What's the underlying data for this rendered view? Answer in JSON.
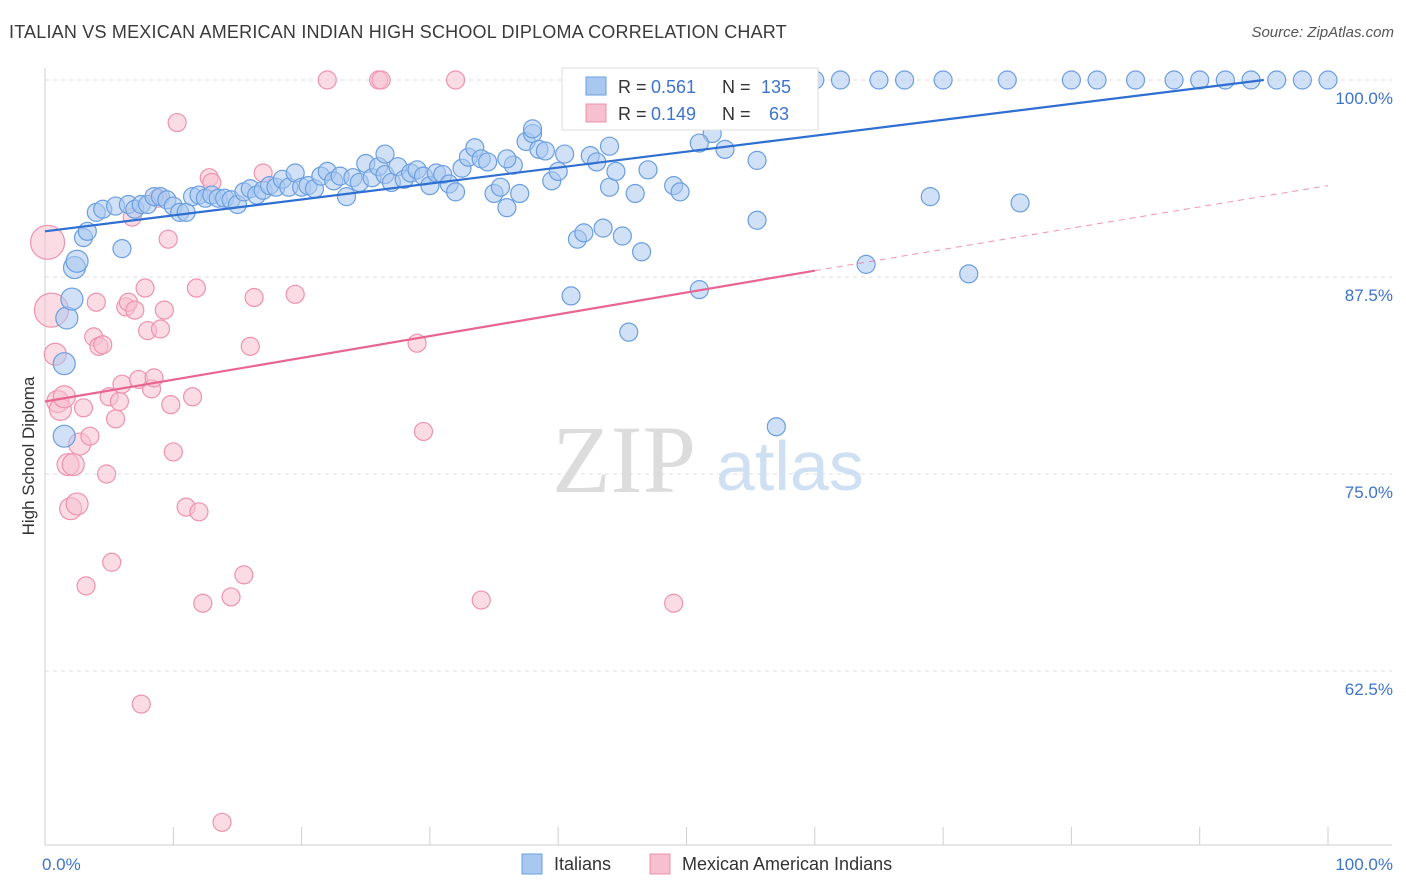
{
  "header": {
    "title": "ITALIAN VS MEXICAN AMERICAN INDIAN HIGH SCHOOL DIPLOMA CORRELATION CHART",
    "source": "Source: ZipAtlas.com"
  },
  "watermark": {
    "zip": "ZIP",
    "atlas": "atlas"
  },
  "colors": {
    "blue_fill": "#a9c8f0",
    "blue_stroke": "#6a9ee0",
    "blue_line": "#2e6fd1",
    "pink_fill": "#f7c0d0",
    "pink_stroke": "#ee92ad",
    "pink_line": "#e86592",
    "grid": "#dddddd",
    "tick_text": "#3d74c9"
  },
  "stats": [
    {
      "r_label": "R = ",
      "r": "0.561",
      "n_label": "N = ",
      "n": "135"
    },
    {
      "r_label": "R = ",
      "r": "0.149",
      "n_label": "N = ",
      "n": "63"
    }
  ],
  "chart_data": {
    "type": "scatter",
    "title": "ITALIAN VS MEXICAN AMERICAN INDIAN HIGH SCHOOL DIPLOMA CORRELATION CHART",
    "xlabel": "",
    "ylabel": "High School Diploma",
    "xlim": [
      0,
      100
    ],
    "ylim": [
      50,
      101
    ],
    "x_ticks": [
      "0.0%",
      "100.0%"
    ],
    "y_ticks": [
      {
        "value": 100.0,
        "label": "100.0%"
      },
      {
        "value": 87.5,
        "label": "87.5%"
      },
      {
        "value": 75.0,
        "label": "75.0%"
      },
      {
        "value": 62.5,
        "label": "62.5%"
      }
    ],
    "grid": true,
    "legend_position": "bottom-center",
    "series": [
      {
        "name": "Italians",
        "color": "#a9c8f0",
        "trend": {
          "x": [
            0,
            95
          ],
          "y": [
            90.4,
            100.0
          ]
        },
        "points": [
          [
            1.5,
            77.4
          ],
          [
            1.5,
            82.0
          ],
          [
            1.7,
            84.9
          ],
          [
            2.1,
            86.1
          ],
          [
            2.3,
            88.1
          ],
          [
            2.5,
            88.5
          ],
          [
            3.0,
            90.0
          ],
          [
            3.3,
            90.4
          ],
          [
            4.0,
            91.6
          ],
          [
            4.5,
            91.8
          ],
          [
            5.5,
            92.0
          ],
          [
            6.0,
            89.3
          ],
          [
            6.5,
            92.1
          ],
          [
            7.0,
            91.8
          ],
          [
            7.5,
            92.1
          ],
          [
            8.0,
            92.1
          ],
          [
            8.5,
            92.6
          ],
          [
            9.0,
            92.6
          ],
          [
            9.5,
            92.4
          ],
          [
            10.0,
            92.0
          ],
          [
            10.5,
            91.6
          ],
          [
            11.0,
            91.6
          ],
          [
            11.5,
            92.6
          ],
          [
            12.0,
            92.7
          ],
          [
            12.5,
            92.5
          ],
          [
            13.0,
            92.7
          ],
          [
            13.5,
            92.5
          ],
          [
            14.0,
            92.5
          ],
          [
            14.5,
            92.4
          ],
          [
            15.0,
            92.1
          ],
          [
            15.5,
            92.9
          ],
          [
            16.0,
            93.1
          ],
          [
            16.5,
            92.7
          ],
          [
            17.0,
            93.0
          ],
          [
            17.5,
            93.3
          ],
          [
            18.0,
            93.2
          ],
          [
            18.5,
            93.7
          ],
          [
            19.0,
            93.2
          ],
          [
            19.5,
            94.1
          ],
          [
            20.0,
            93.2
          ],
          [
            20.5,
            93.3
          ],
          [
            21.0,
            93.1
          ],
          [
            21.5,
            93.9
          ],
          [
            22.0,
            94.2
          ],
          [
            22.5,
            93.6
          ],
          [
            23.0,
            93.9
          ],
          [
            23.5,
            92.6
          ],
          [
            24.0,
            93.8
          ],
          [
            24.5,
            93.5
          ],
          [
            25.0,
            94.7
          ],
          [
            25.5,
            93.8
          ],
          [
            26.0,
            94.5
          ],
          [
            26.5,
            94.0
          ],
          [
            27.0,
            93.5
          ],
          [
            27.5,
            94.5
          ],
          [
            28.0,
            93.7
          ],
          [
            28.5,
            94.1
          ],
          [
            29.0,
            94.3
          ],
          [
            29.5,
            93.9
          ],
          [
            30.0,
            93.3
          ],
          [
            30.5,
            94.1
          ],
          [
            31.0,
            94.0
          ],
          [
            31.5,
            93.4
          ],
          [
            32.0,
            92.9
          ],
          [
            32.5,
            94.4
          ],
          [
            33.0,
            95.1
          ],
          [
            33.5,
            95.7
          ],
          [
            34.0,
            95.0
          ],
          [
            34.5,
            94.8
          ],
          [
            35.0,
            92.8
          ],
          [
            35.5,
            93.2
          ],
          [
            36.0,
            91.9
          ],
          [
            36.5,
            94.6
          ],
          [
            37.0,
            92.8
          ],
          [
            37.5,
            96.1
          ],
          [
            38.0,
            96.6
          ],
          [
            38.5,
            95.6
          ],
          [
            39.0,
            95.5
          ],
          [
            39.5,
            93.6
          ],
          [
            40.0,
            94.2
          ],
          [
            40.5,
            95.3
          ],
          [
            41.0,
            86.3
          ],
          [
            41.5,
            89.9
          ],
          [
            42.0,
            90.3
          ],
          [
            42.5,
            95.2
          ],
          [
            43.0,
            94.8
          ],
          [
            43.5,
            90.6
          ],
          [
            44.0,
            93.2
          ],
          [
            44.5,
            94.2
          ],
          [
            45.0,
            90.1
          ],
          [
            45.5,
            84.0
          ],
          [
            46.0,
            92.8
          ],
          [
            46.5,
            89.1
          ],
          [
            47.0,
            94.3
          ],
          [
            48.0,
            99.6
          ],
          [
            48.5,
            98.8
          ],
          [
            49.0,
            93.3
          ],
          [
            49.5,
            92.9
          ],
          [
            50.0,
            100.0
          ],
          [
            51.0,
            86.7
          ],
          [
            51.5,
            99.8
          ],
          [
            52.0,
            96.6
          ],
          [
            53.0,
            95.6
          ],
          [
            54.0,
            100.0
          ],
          [
            55.0,
            100.0
          ],
          [
            56.0,
            100.0
          ],
          [
            57.0,
            78.0
          ],
          [
            55.5,
            91.1
          ],
          [
            58.0,
            100.0
          ],
          [
            60.0,
            100.0
          ],
          [
            62.0,
            100.0
          ],
          [
            64.0,
            88.3
          ],
          [
            65.0,
            100.0
          ],
          [
            67.0,
            100.0
          ],
          [
            69.0,
            92.6
          ],
          [
            70.0,
            100.0
          ],
          [
            72.0,
            87.7
          ],
          [
            75.0,
            100.0
          ],
          [
            76.0,
            92.2
          ],
          [
            80.0,
            100.0
          ],
          [
            82.0,
            100.0
          ],
          [
            85.0,
            100.0
          ],
          [
            88.0,
            100.0
          ],
          [
            90.0,
            100.0
          ],
          [
            92.0,
            100.0
          ],
          [
            94.0,
            100.0
          ],
          [
            96.0,
            100.0
          ],
          [
            98.0,
            100.0
          ],
          [
            100.0,
            100.0
          ],
          [
            26.5,
            95.3
          ],
          [
            36.0,
            95.0
          ],
          [
            44.0,
            95.8
          ],
          [
            51.0,
            96.0
          ],
          [
            38.0,
            96.9
          ],
          [
            55.5,
            94.9
          ]
        ]
      },
      {
        "name": "Mexican American Indians",
        "color": "#f7c0d0",
        "trend": {
          "x": [
            0,
            60
          ],
          "y": [
            79.6,
            87.9
          ],
          "dashed_extension": {
            "x": [
              60,
              100
            ],
            "y": [
              87.9,
              93.3
            ]
          }
        },
        "points": [
          [
            0.2,
            89.7
          ],
          [
            0.5,
            85.4
          ],
          [
            0.8,
            82.6
          ],
          [
            1.0,
            79.6
          ],
          [
            1.2,
            79.1
          ],
          [
            1.5,
            79.9
          ],
          [
            1.8,
            75.6
          ],
          [
            2.0,
            72.8
          ],
          [
            2.2,
            75.6
          ],
          [
            2.5,
            73.1
          ],
          [
            2.7,
            76.9
          ],
          [
            3.0,
            79.2
          ],
          [
            3.2,
            67.9
          ],
          [
            3.5,
            77.4
          ],
          [
            3.8,
            83.7
          ],
          [
            4.0,
            85.9
          ],
          [
            4.2,
            83.1
          ],
          [
            4.5,
            83.2
          ],
          [
            4.8,
            75.0
          ],
          [
            5.0,
            79.9
          ],
          [
            5.2,
            69.4
          ],
          [
            5.5,
            78.5
          ],
          [
            5.8,
            79.6
          ],
          [
            6.0,
            80.7
          ],
          [
            6.3,
            85.6
          ],
          [
            6.5,
            85.9
          ],
          [
            6.8,
            91.3
          ],
          [
            7.0,
            85.4
          ],
          [
            7.3,
            81.0
          ],
          [
            7.5,
            60.4
          ],
          [
            7.8,
            86.8
          ],
          [
            8.0,
            84.1
          ],
          [
            8.3,
            80.4
          ],
          [
            8.5,
            81.1
          ],
          [
            8.8,
            92.5
          ],
          [
            9.0,
            84.2
          ],
          [
            9.3,
            85.4
          ],
          [
            9.6,
            89.9
          ],
          [
            9.8,
            79.4
          ],
          [
            10.0,
            76.4
          ],
          [
            10.3,
            97.3
          ],
          [
            11.0,
            72.9
          ],
          [
            11.5,
            79.9
          ],
          [
            11.8,
            86.8
          ],
          [
            12.0,
            72.6
          ],
          [
            12.3,
            66.8
          ],
          [
            12.8,
            93.8
          ],
          [
            13.0,
            93.5
          ],
          [
            13.8,
            52.9
          ],
          [
            14.5,
            67.2
          ],
          [
            15.5,
            68.6
          ],
          [
            16.0,
            83.1
          ],
          [
            16.3,
            86.2
          ],
          [
            17.0,
            94.1
          ],
          [
            19.5,
            86.4
          ],
          [
            22.0,
            100.0
          ],
          [
            26.0,
            100.0
          ],
          [
            26.2,
            100.0
          ],
          [
            29.0,
            83.3
          ],
          [
            29.5,
            77.7
          ],
          [
            32.0,
            100.0
          ],
          [
            34.0,
            67.0
          ],
          [
            49.0,
            66.8
          ]
        ]
      }
    ]
  }
}
